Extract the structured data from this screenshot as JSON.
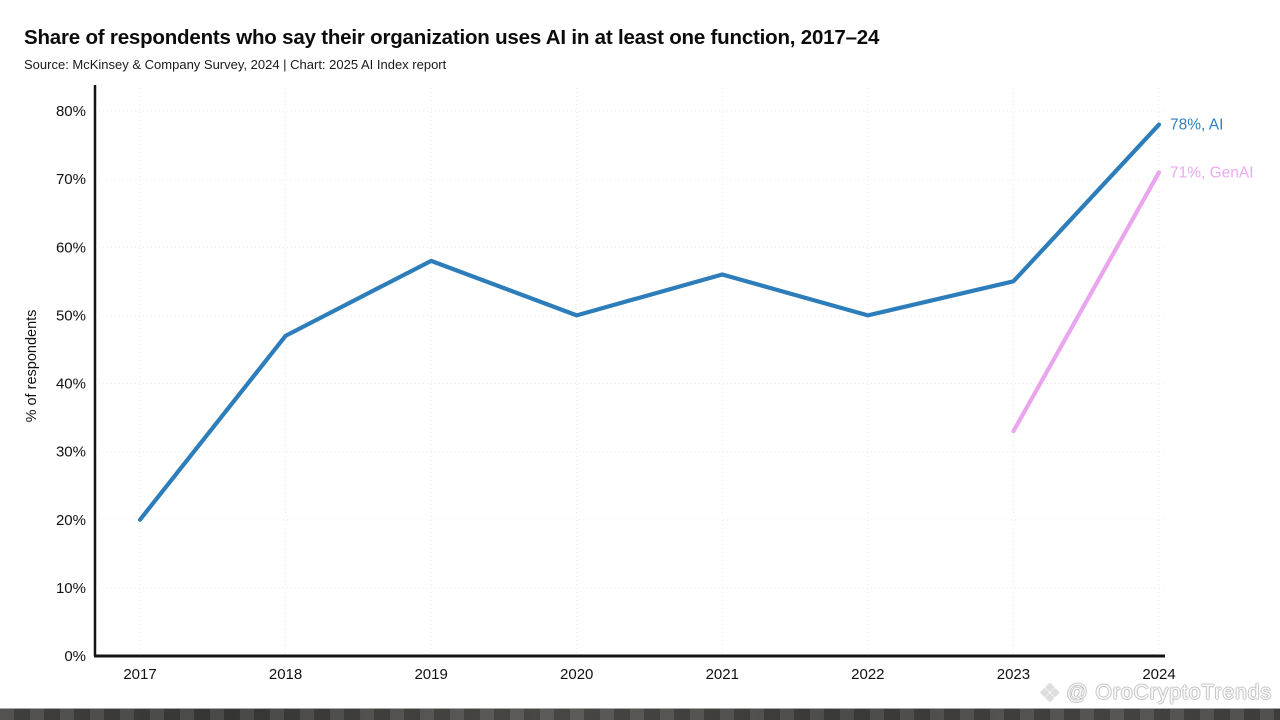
{
  "header": {
    "title": "Share of respondents who say their organization uses AI in at least one function, 2017–24",
    "subtitle": "Source: McKinsey & Company Survey, 2024 | Chart: 2025 AI Index report"
  },
  "colors": {
    "ai_line": "#2D7DBA",
    "genai_line": "#E9A6EF",
    "ai_label": "#2F7FC1",
    "genai_label": "#ECA9F2",
    "axis": "#141414",
    "grid": "#F0E9E9",
    "tick_text": "#111111"
  },
  "chart_data": {
    "type": "line",
    "x": [
      2017,
      2018,
      2019,
      2020,
      2021,
      2022,
      2023,
      2024
    ],
    "series": [
      {
        "name": "AI",
        "color": "#2D7DBA",
        "values": [
          20,
          47,
          58,
          50,
          56,
          50,
          55,
          78
        ],
        "end_label": "78%, AI",
        "label_color": "#2F7FC1"
      },
      {
        "name": "GenAI",
        "color": "#E9A6EF",
        "values": [
          null,
          null,
          null,
          null,
          null,
          null,
          33,
          71
        ],
        "end_label": "71%, GenAI",
        "label_color": "#ECA9F2"
      }
    ],
    "title": "Share of respondents who say their organization uses AI in at least one function, 2017–24",
    "xlabel": "",
    "ylabel": "% of respondents",
    "ylim": [
      0,
      80
    ],
    "ytick_step": 10,
    "ytick_suffix": "%",
    "grid": true,
    "legend_position": "end-labels"
  },
  "watermark": {
    "icon": "❖",
    "handle": "@ OroCryptoTrends"
  }
}
